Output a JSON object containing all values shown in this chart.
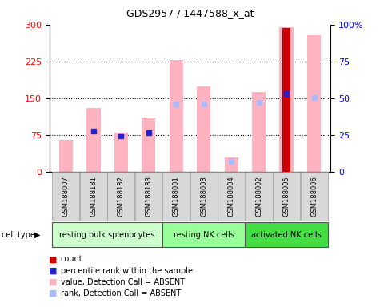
{
  "title": "GDS2957 / 1447588_x_at",
  "samples": [
    "GSM188007",
    "GSM188181",
    "GSM188182",
    "GSM188183",
    "GSM188001",
    "GSM188003",
    "GSM188004",
    "GSM188002",
    "GSM188005",
    "GSM188006"
  ],
  "cell_types": [
    {
      "label": "resting bulk splenocytes",
      "start": 0,
      "end": 4,
      "color": "#ccffcc"
    },
    {
      "label": "resting NK cells",
      "start": 4,
      "end": 7,
      "color": "#99ff99"
    },
    {
      "label": "activated NK cells",
      "start": 7,
      "end": 10,
      "color": "#44dd44"
    }
  ],
  "value_bars": [
    65,
    130,
    80,
    110,
    228,
    175,
    30,
    163,
    295,
    278
  ],
  "percentile_rank_dots_left": [
    null,
    83,
    73,
    80,
    null,
    null,
    null,
    null,
    160,
    null
  ],
  "rank_dots_left": [
    null,
    null,
    null,
    null,
    138,
    138,
    22,
    142,
    null,
    151
  ],
  "count_bars": [
    null,
    null,
    null,
    null,
    null,
    null,
    null,
    null,
    293,
    null
  ],
  "ylim_left": [
    0,
    300
  ],
  "ylim_right": [
    0,
    100
  ],
  "yticks_left": [
    0,
    75,
    150,
    225,
    300
  ],
  "yticks_right": [
    0,
    25,
    50,
    75,
    100
  ],
  "right_tick_labels": [
    "0",
    "25",
    "50",
    "75",
    "100%"
  ],
  "color_value_absent": "#ffb3c1",
  "color_rank_absent": "#aabbff",
  "color_count": "#cc0000",
  "color_percentile": "#2222cc",
  "legend_labels": [
    "count",
    "percentile rank within the sample",
    "value, Detection Call = ABSENT",
    "rank, Detection Call = ABSENT"
  ],
  "bar_width": 0.5,
  "cell_type_label": "cell type"
}
